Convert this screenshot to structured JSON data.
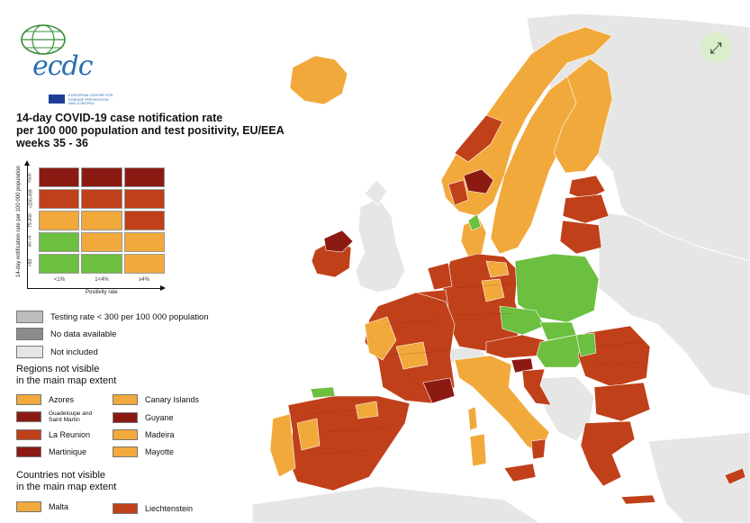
{
  "logo": {
    "wordmark": "ecdc",
    "subtitle": "EUROPEAN CENTRE FOR DISEASE PREVENTION AND CONTROL"
  },
  "title": {
    "line1": "14-day COVID-19 case notification rate",
    "line2": "per 100 000 population and test positivity, EU/EEA",
    "line3": "weeks 35 - 36"
  },
  "matrix": {
    "y_axis_label": "14-day notification rate per 100 000 population",
    "x_axis_label": "Positivity rate",
    "y_ticks": [
      ">500",
      ">200-499",
      "75-200",
      "50-74",
      "<50"
    ],
    "x_ticks": [
      "<1%",
      "1<4%",
      "≥4%"
    ],
    "cells": [
      [
        "#8b1a12",
        "#8b1a12",
        "#8b1a12"
      ],
      [
        "#c0401a",
        "#c0401a",
        "#c0401a"
      ],
      [
        "#f2a93b",
        "#f2a93b",
        "#c0401a"
      ],
      [
        "#6cbf3f",
        "#f2a93b",
        "#f2a93b"
      ],
      [
        "#6cbf3f",
        "#6cbf3f",
        "#f2a93b"
      ]
    ]
  },
  "legend": {
    "testing_rate": "Testing rate < 300 per 100 000 population",
    "no_data": "No data available",
    "not_included": "Not included",
    "colors": {
      "testing": "#bdbdbd",
      "no_data": "#8c8c8c",
      "not_included": "#e6e6e6"
    }
  },
  "regions": {
    "heading_line1": "Regions not visible",
    "heading_line2": "in the main map extent",
    "items": [
      {
        "label": "Azores",
        "color": "#f2a93b"
      },
      {
        "label": "Canary Islands",
        "color": "#f2a93b"
      },
      {
        "label": "Guadeloupe and Saint Martin",
        "color": "#8b1a12"
      },
      {
        "label": "Guyane",
        "color": "#8b1a12"
      },
      {
        "label": "La Reunion",
        "color": "#c0401a"
      },
      {
        "label": "Madeira",
        "color": "#f2a93b"
      },
      {
        "label": "Martinique",
        "color": "#8b1a12"
      },
      {
        "label": "Mayotte",
        "color": "#f2a93b"
      }
    ]
  },
  "countries": {
    "heading_line1": "Countries not visible",
    "heading_line2": "in the main map extent",
    "items": [
      {
        "label": "Malta",
        "color": "#f2a93b"
      },
      {
        "label": "Liechtenstein",
        "color": "#c0401a"
      }
    ]
  },
  "expand_icon": "expand-arrows-icon",
  "map_colors": {
    "sea": "#ffffff",
    "non_eu": "#e6e6e6",
    "dark_red": "#8b1a12",
    "red": "#c0401a",
    "orange": "#f2a93b",
    "green": "#6cbf3f"
  }
}
